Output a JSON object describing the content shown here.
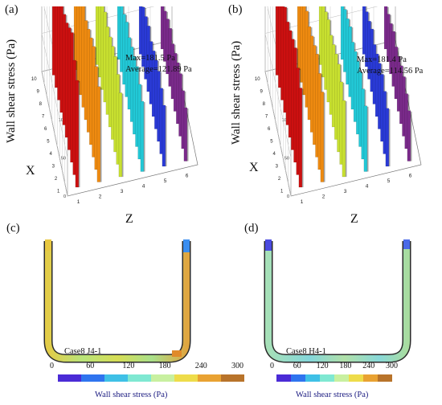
{
  "panels": [
    {
      "letter": "(a)",
      "max_label": "Max=181.5  Pa",
      "avg_label": "Average=121.89  Pa",
      "ylabel": "Wall shear stress (Pa)",
      "xaxis": "X",
      "zaxis": "Z"
    },
    {
      "letter": "(b)",
      "max_label": "Max=181.4  Pa",
      "avg_label": "Average=114.56  Pa",
      "ylabel": "Wall shear stress (Pa)",
      "xaxis": "X",
      "zaxis": "Z"
    },
    {
      "letter": "(c)",
      "case_label": "Case8  J4-1",
      "colorbar_title": "Wall shear stress (Pa)"
    },
    {
      "letter": "(d)",
      "case_label": "Case8  H4-1",
      "colorbar_title": "Wall shear stress (Pa)"
    }
  ],
  "colorbar": {
    "ticks": [
      "0",
      "60",
      "120",
      "180",
      "240",
      "300"
    ],
    "colors": [
      "#4a2bd6",
      "#2f74ef",
      "#3fc0e6",
      "#7fe8d2",
      "#c8f0a0",
      "#eedc4a",
      "#e9a232",
      "#b8732a"
    ]
  },
  "chart_data": [
    {
      "type": "bar3d",
      "title": "",
      "zlabel": "Wall shear stress (Pa)",
      "xlabel": "X",
      "ylabel": "Z",
      "zlim": [
        0,
        200
      ],
      "z_ticks": [
        0,
        50,
        100,
        150,
        200
      ],
      "x_ticks": [
        1,
        2,
        3,
        4,
        5,
        6,
        7,
        8,
        9,
        10
      ],
      "y_ticks": [
        1,
        2,
        3,
        4,
        5,
        6
      ],
      "max": 181.5,
      "average": 121.89,
      "rows": [
        {
          "z": 1,
          "values": [
            140,
            150,
            170,
            160,
            150,
            145,
            150,
            140,
            135,
            120
          ],
          "color": "#cc1010"
        },
        {
          "z": 2,
          "values": [
            125,
            135,
            145,
            140,
            135,
            130,
            135,
            130,
            125,
            115
          ],
          "color": "#ee8a10"
        },
        {
          "z": 3,
          "values": [
            110,
            118,
            125,
            122,
            118,
            115,
            118,
            112,
            105,
            100
          ],
          "color": "#c8e030"
        },
        {
          "z": 4,
          "values": [
            92,
            98,
            105,
            102,
            98,
            94,
            98,
            92,
            88,
            82
          ],
          "color": "#22c8d6"
        },
        {
          "z": 5,
          "values": [
            80,
            86,
            92,
            90,
            86,
            82,
            86,
            82,
            78,
            72
          ],
          "color": "#2a3ad6"
        },
        {
          "z": 6,
          "values": [
            70,
            76,
            82,
            80,
            76,
            72,
            76,
            72,
            66,
            60
          ],
          "color": "#7a2a8a"
        }
      ]
    },
    {
      "type": "bar3d",
      "title": "",
      "zlabel": "Wall shear stress (Pa)",
      "xlabel": "X",
      "ylabel": "Z",
      "zlim": [
        0,
        200
      ],
      "z_ticks": [
        0,
        50,
        100,
        150,
        200
      ],
      "x_ticks": [
        1,
        2,
        3,
        4,
        5,
        6,
        7,
        8,
        9,
        10
      ],
      "y_ticks": [
        1,
        2,
        3,
        4,
        5,
        6
      ],
      "max": 181.4,
      "average": 114.56,
      "rows": [
        {
          "z": 1,
          "values": [
            130,
            140,
            150,
            145,
            140,
            135,
            138,
            130,
            125,
            115
          ],
          "color": "#cc1010"
        },
        {
          "z": 2,
          "values": [
            118,
            126,
            135,
            130,
            126,
            122,
            126,
            120,
            115,
            108
          ],
          "color": "#ee8a10"
        },
        {
          "z": 3,
          "values": [
            100,
            108,
            115,
            112,
            108,
            104,
            108,
            102,
            98,
            92
          ],
          "color": "#c8e030"
        },
        {
          "z": 4,
          "values": [
            86,
            92,
            98,
            96,
            92,
            88,
            92,
            86,
            82,
            76
          ],
          "color": "#22c8d6"
        },
        {
          "z": 5,
          "values": [
            76,
            82,
            88,
            86,
            82,
            78,
            82,
            76,
            72,
            66
          ],
          "color": "#2a3ad6"
        },
        {
          "z": 6,
          "values": [
            66,
            72,
            78,
            76,
            72,
            68,
            72,
            66,
            62,
            56
          ],
          "color": "#7a2a8a"
        }
      ]
    }
  ]
}
